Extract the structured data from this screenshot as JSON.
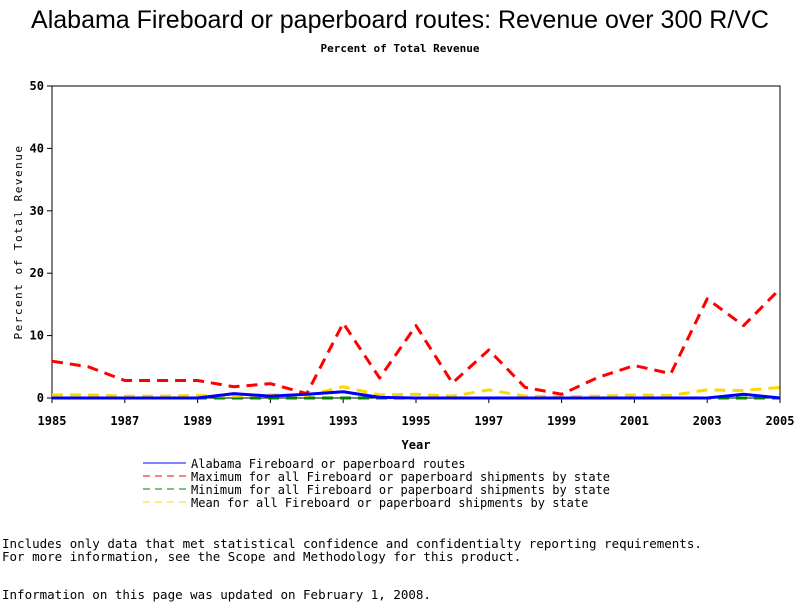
{
  "chart_data": {
    "type": "line",
    "title": "Alabama Fireboard or paperboard routes: Revenue over 300 R/VC",
    "subtitle": "Percent of Total Revenue",
    "xlabel": "Year",
    "ylabel": "Percent of Total Revenue",
    "xlim": [
      1985,
      2005
    ],
    "ylim": [
      0,
      50
    ],
    "x_ticks": [
      "1985",
      "1987",
      "1989",
      "1991",
      "1993",
      "1995",
      "1997",
      "1999",
      "2001",
      "2003",
      "2005"
    ],
    "y_ticks": [
      "0",
      "10",
      "20",
      "30",
      "40",
      "50"
    ],
    "grid": false,
    "legend_position": "bottom",
    "x": [
      1985,
      1986,
      1987,
      1988,
      1989,
      1990,
      1991,
      1992,
      1993,
      1994,
      1995,
      1996,
      1997,
      1998,
      1999,
      2000,
      2001,
      2002,
      2003,
      2004,
      2005
    ],
    "series": [
      {
        "name": "Alabama Fireboard or paperboard routes",
        "color": "#0000ff",
        "dash": "solid",
        "values": [
          0,
          0,
          0,
          0,
          0,
          0.7,
          0.3,
          0.6,
          1.0,
          0.1,
          0,
          0,
          0,
          0,
          0,
          0,
          0,
          0,
          0,
          0.6,
          0
        ]
      },
      {
        "name": "Maximum for all Fireboard or paperboard shipments by state",
        "color": "#ff0000",
        "dash": "dashed",
        "values": [
          5.9,
          5.0,
          2.8,
          2.8,
          2.8,
          1.8,
          2.3,
          0.7,
          12.0,
          3.2,
          11.6,
          2.4,
          7.7,
          1.7,
          0.6,
          3.3,
          5.2,
          3.9,
          15.9,
          11.6,
          17.5
        ]
      },
      {
        "name": "Minimum for all Fireboard or paperboard shipments by state",
        "color": "#008000",
        "dash": "dashed",
        "values": [
          0,
          0,
          0,
          0,
          0,
          0,
          0,
          0,
          0,
          0,
          0,
          0,
          0,
          0,
          0,
          0,
          0,
          0,
          0,
          0,
          0
        ]
      },
      {
        "name": "Mean for all Fireboard or paperboard shipments by state",
        "color": "#ffd700",
        "dash": "dashed",
        "values": [
          0.5,
          0.5,
          0.3,
          0.3,
          0.4,
          0.3,
          0.5,
          0.4,
          1.8,
          0.5,
          0.6,
          0.3,
          1.3,
          0.3,
          0.2,
          0.3,
          0.5,
          0.4,
          1.3,
          1.2,
          1.7
        ]
      }
    ]
  },
  "footnotes": [
    "Includes only data that met statistical confidence and confidentialty reporting requirements.",
    "For more information, see the Scope and Methodology for this product."
  ],
  "update_note": "Information on this page was updated on February 1, 2008."
}
